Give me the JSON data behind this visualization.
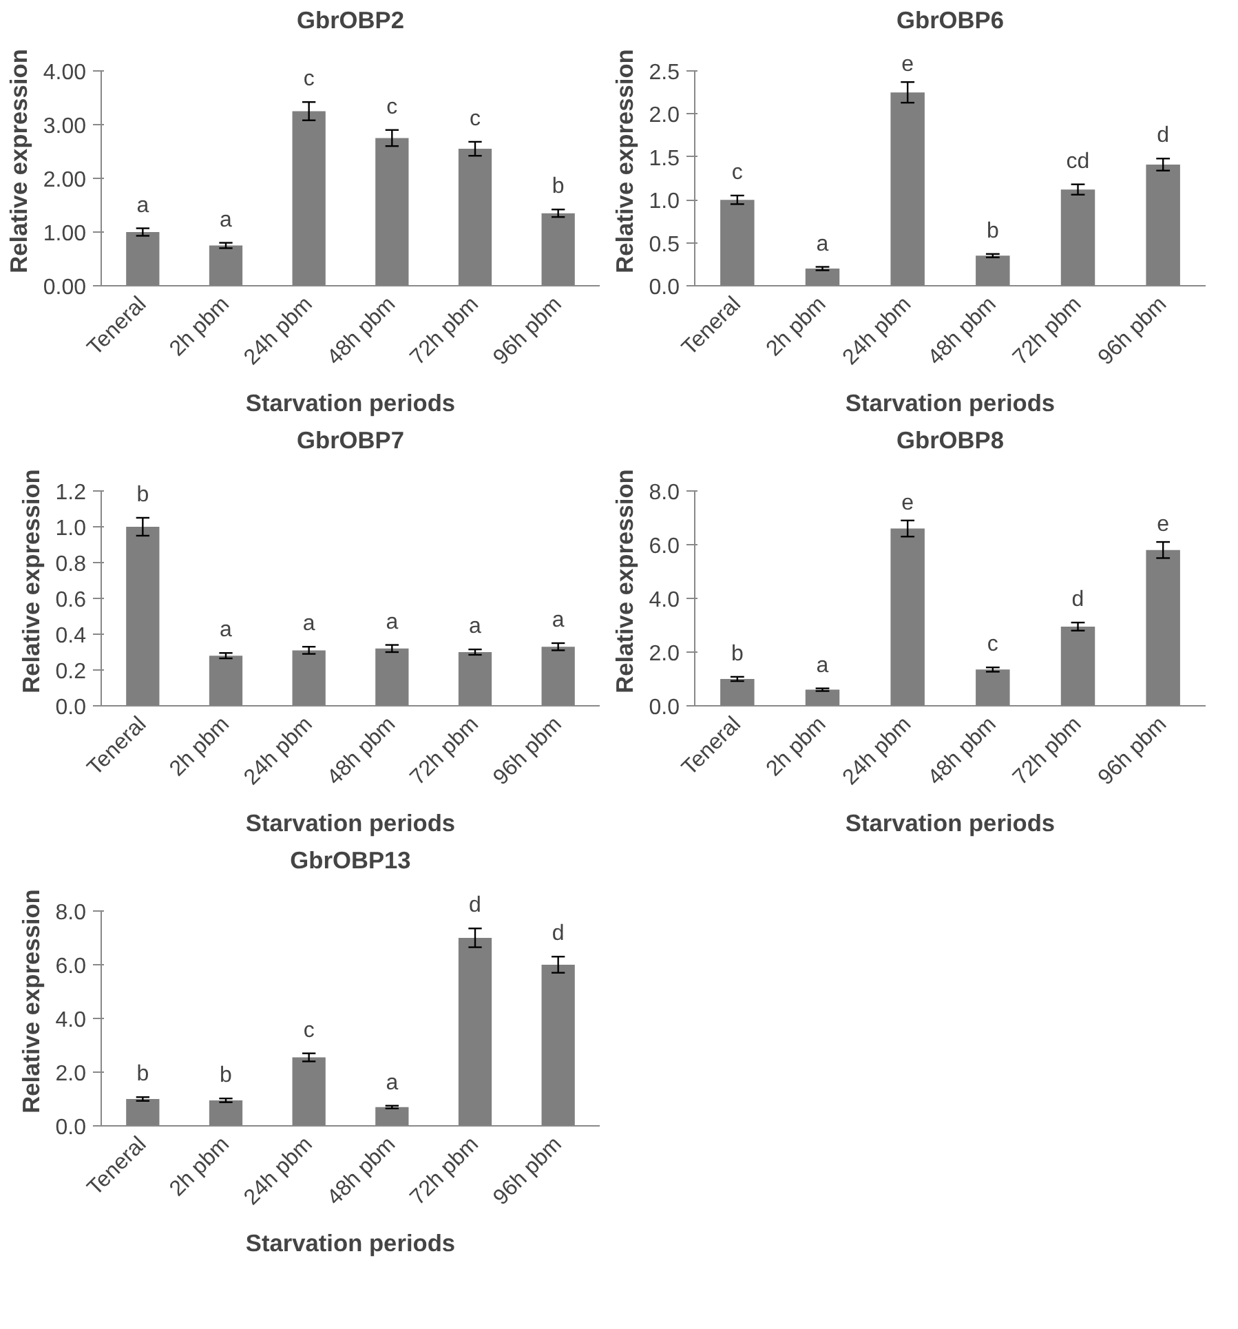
{
  "chart_data": [
    {
      "type": "bar",
      "title": "GbrOBP2",
      "xlabel": "Starvation periods",
      "ylabel": "Relative expression",
      "categories": [
        "Teneral",
        "2h pbm",
        "24h pbm",
        "48h pbm",
        "72h pbm",
        "96h pbm"
      ],
      "values": [
        1.0,
        0.75,
        3.25,
        2.75,
        2.55,
        1.35
      ],
      "errors": [
        0.07,
        0.05,
        0.17,
        0.15,
        0.13,
        0.07
      ],
      "color": "#7f7f7f",
      "ylim": [
        0,
        4
      ],
      "yticks": [
        {
          "value": 0,
          "label": "0.00"
        },
        {
          "value": 1,
          "label": "1.00"
        },
        {
          "value": 2,
          "label": "2.00"
        },
        {
          "value": 3,
          "label": "3.00"
        },
        {
          "value": 4,
          "label": "4.00"
        }
      ],
      "annotations": [
        "a",
        "a",
        "c",
        "c",
        "c",
        "b"
      ]
    },
    {
      "type": "bar",
      "title": "GbrOBP6",
      "xlabel": "Starvation periods",
      "ylabel": "Relative expression",
      "categories": [
        "Teneral",
        "2h pbm",
        "24h pbm",
        "48h pbm",
        "72h pbm",
        "96h pbm"
      ],
      "values": [
        1.0,
        0.2,
        2.25,
        0.35,
        1.12,
        1.41
      ],
      "errors": [
        0.05,
        0.02,
        0.12,
        0.02,
        0.06,
        0.07
      ],
      "color": "#7f7f7f",
      "ylim": [
        0,
        2.5
      ],
      "yticks": [
        {
          "value": 0,
          "label": "0.0"
        },
        0.5,
        {
          "value": 1,
          "label": "1.0"
        },
        1.5,
        {
          "value": 2,
          "label": "2.0"
        },
        2.5
      ],
      "annotations": [
        "c",
        "a",
        "e",
        "b",
        "cd",
        "d"
      ]
    },
    {
      "type": "bar",
      "title": "GbrOBP7",
      "xlabel": "Starvation periods",
      "ylabel": "Relative expression",
      "categories": [
        "Teneral",
        "2h pbm",
        "24h pbm",
        "48h pbm",
        "72h pbm",
        "96h pbm"
      ],
      "values": [
        1.0,
        0.28,
        0.31,
        0.32,
        0.3,
        0.33
      ],
      "errors": [
        0.05,
        0.015,
        0.02,
        0.02,
        0.015,
        0.02
      ],
      "color": "#7f7f7f",
      "ylim": [
        0,
        1.2
      ],
      "yticks": [
        {
          "value": 0,
          "label": "0.0"
        },
        0.2,
        0.4,
        0.6,
        0.8,
        {
          "value": 1,
          "label": "1.0"
        },
        1.2
      ],
      "annotations": [
        "b",
        "a",
        "a",
        "a",
        "a",
        "a"
      ]
    },
    {
      "type": "bar",
      "title": "GbrOBP8",
      "xlabel": "Starvation periods",
      "ylabel": "Relative expression",
      "categories": [
        "Teneral",
        "2h pbm",
        "24h pbm",
        "48h pbm",
        "72h pbm",
        "96h pbm"
      ],
      "values": [
        1.0,
        0.6,
        6.6,
        1.35,
        2.95,
        5.8
      ],
      "errors": [
        0.08,
        0.05,
        0.3,
        0.08,
        0.15,
        0.3
      ],
      "color": "#7f7f7f",
      "ylim": [
        0,
        8
      ],
      "yticks": [
        {
          "value": 0,
          "label": "0.0"
        },
        {
          "value": 2,
          "label": "2.0"
        },
        {
          "value": 4,
          "label": "4.0"
        },
        {
          "value": 6,
          "label": "6.0"
        },
        {
          "value": 8,
          "label": "8.0"
        }
      ],
      "annotations": [
        "b",
        "a",
        "e",
        "c",
        "d",
        "e"
      ]
    },
    {
      "type": "bar",
      "title": "GbrOBP13",
      "xlabel": "Starvation periods",
      "ylabel": "Relative expression",
      "categories": [
        "Teneral",
        "2h pbm",
        "24h pbm",
        "48h pbm",
        "72h pbm",
        "96h pbm"
      ],
      "values": [
        1.0,
        0.95,
        2.55,
        0.7,
        7.0,
        6.0
      ],
      "errors": [
        0.07,
        0.07,
        0.15,
        0.05,
        0.35,
        0.3
      ],
      "color": "#7f7f7f",
      "ylim": [
        0,
        8
      ],
      "yticks": [
        {
          "value": 0,
          "label": "0.0"
        },
        {
          "value": 2,
          "label": "2.0"
        },
        {
          "value": 4,
          "label": "4.0"
        },
        {
          "value": 6,
          "label": "6.0"
        },
        {
          "value": 8,
          "label": "8.0"
        }
      ],
      "annotations": [
        "b",
        "b",
        "c",
        "a",
        "d",
        "d"
      ]
    }
  ]
}
